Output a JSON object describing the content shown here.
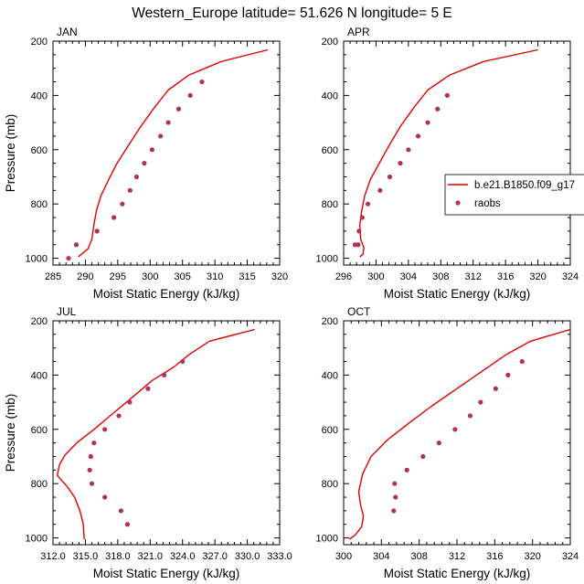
{
  "figure_title": "Western_Europe  latitude= 51.626 N longitude= 5 E",
  "colors": {
    "model": "#e00000",
    "obs": "#b03060",
    "axis": "#000000"
  },
  "legend": {
    "entries": [
      {
        "label": "b.e21.B1850.f09_g17",
        "kind": "line"
      },
      {
        "label": "raobs",
        "kind": "marker"
      }
    ]
  },
  "chart_data": [
    {
      "type": "line",
      "title": "JAN",
      "xlabel": "Moist Static Energy (kJ/kg)",
      "ylabel": "Pressure (mb)",
      "xlim": [
        285,
        320
      ],
      "ylim": [
        1025,
        200
      ],
      "xticks": [
        285,
        290,
        295,
        300,
        305,
        310,
        315,
        320
      ],
      "xtick_labels": [
        "285",
        "290",
        "295",
        "300",
        "305",
        "310",
        "315",
        "320"
      ],
      "yticks": [
        200,
        400,
        600,
        800,
        1000
      ],
      "ytick_labels": [
        "200",
        "400",
        "600",
        "800",
        "1000"
      ],
      "series": [
        {
          "name": "b.e21.B1850.f09_g17",
          "style": "line",
          "x": [
            318.2,
            311.0,
            306.0,
            302.8,
            300.5,
            298.4,
            296.5,
            294.9,
            293.6,
            292.4,
            291.7,
            291.3,
            291.0,
            290.4,
            288.9
          ],
          "y": [
            232,
            275,
            325,
            380,
            450,
            520,
            590,
            650,
            710,
            770,
            825,
            880,
            930,
            965,
            995
          ]
        },
        {
          "name": "raobs",
          "style": "marker",
          "x": [
            308.0,
            306.2,
            304.4,
            302.8,
            301.6,
            300.3,
            299.1,
            297.9,
            296.9,
            295.7,
            294.4,
            291.8,
            288.6,
            287.4
          ],
          "y": [
            350,
            400,
            450,
            500,
            550,
            600,
            650,
            700,
            750,
            800,
            850,
            900,
            950,
            1000
          ]
        }
      ]
    },
    {
      "type": "line",
      "title": "APR",
      "xlabel": "Moist Static Energy (kJ/kg)",
      "ylabel": "",
      "xlim": [
        296,
        324
      ],
      "ylim": [
        1025,
        200
      ],
      "xticks": [
        296,
        300,
        304,
        308,
        312,
        316,
        320,
        324
      ],
      "xtick_labels": [
        "296",
        "300",
        "304",
        "308",
        "312",
        "316",
        "320",
        "324"
      ],
      "yticks": [
        200,
        400,
        600,
        800,
        1000
      ],
      "ytick_labels": [
        "200",
        "400",
        "600",
        "800",
        "1000"
      ],
      "series": [
        {
          "name": "b.e21.B1850.f09_g17",
          "style": "line",
          "x": [
            320.0,
            313.3,
            309.1,
            306.4,
            304.8,
            303.1,
            301.7,
            300.4,
            299.3,
            298.6,
            298.2,
            298.0,
            298.1,
            298.5,
            298.4,
            298.0
          ],
          "y": [
            232,
            275,
            325,
            380,
            440,
            510,
            580,
            650,
            710,
            770,
            830,
            880,
            930,
            960,
            985,
            995
          ]
        },
        {
          "name": "raobs",
          "style": "marker",
          "x": [
            308.8,
            307.6,
            306.4,
            305.2,
            304.0,
            303.0,
            301.7,
            300.5,
            299.0,
            298.3,
            297.9,
            297.8,
            297.4
          ],
          "y": [
            400,
            450,
            500,
            550,
            600,
            650,
            700,
            750,
            800,
            850,
            900,
            950,
            950
          ]
        }
      ]
    },
    {
      "type": "line",
      "title": "JUL",
      "xlabel": "Moist Static Energy (kJ/kg)",
      "ylabel": "Pressure (mb)",
      "xlim": [
        312,
        333
      ],
      "ylim": [
        1025,
        200
      ],
      "xticks": [
        312,
        315,
        318,
        321,
        324,
        327,
        330,
        333
      ],
      "xtick_labels": [
        "312.0",
        "315.0",
        "318.0",
        "321.0",
        "324.0",
        "327.0",
        "330.0",
        "333.0"
      ],
      "yticks": [
        200,
        400,
        600,
        800,
        1000
      ],
      "ytick_labels": [
        "200",
        "400",
        "600",
        "800",
        "1000"
      ],
      "series": [
        {
          "name": "b.e21.B1850.f09_g17",
          "style": "line",
          "x": [
            330.7,
            326.5,
            324.6,
            323.2,
            321.2,
            319.4,
            317.6,
            315.8,
            314.2,
            313.1,
            312.6,
            312.4,
            313.3,
            314.0,
            314.5,
            314.8,
            314.9
          ],
          "y": [
            232,
            275,
            325,
            370,
            420,
            480,
            540,
            600,
            650,
            695,
            730,
            770,
            810,
            850,
            900,
            950,
            1005
          ]
        },
        {
          "name": "raobs",
          "style": "marker",
          "x": [
            324.0,
            322.3,
            320.8,
            319.1,
            318.1,
            316.8,
            315.8,
            315.5,
            315.4,
            315.6,
            316.8,
            318.3,
            318.9
          ],
          "y": [
            350,
            400,
            450,
            500,
            550,
            600,
            650,
            700,
            750,
            800,
            850,
            900,
            950
          ]
        }
      ]
    },
    {
      "type": "line",
      "title": "OCT",
      "xlabel": "Moist Static Energy (kJ/kg)",
      "ylabel": "",
      "xlim": [
        300,
        324
      ],
      "ylim": [
        1025,
        200
      ],
      "xticks": [
        300,
        304,
        308,
        312,
        316,
        320,
        324
      ],
      "xtick_labels": [
        "300",
        "304",
        "308",
        "312",
        "316",
        "320",
        "324"
      ],
      "yticks": [
        200,
        400,
        600,
        800,
        1000
      ],
      "ytick_labels": [
        "200",
        "400",
        "600",
        "800",
        "1000"
      ],
      "series": [
        {
          "name": "b.e21.B1850.f09_g17",
          "style": "line",
          "x": [
            324.0,
            319.8,
            317.2,
            314.7,
            312.0,
            309.3,
            306.8,
            304.6,
            302.9,
            302.0,
            301.6,
            301.8,
            302.1,
            301.9,
            301.2,
            300.6
          ],
          "y": [
            232,
            275,
            325,
            385,
            450,
            515,
            580,
            640,
            700,
            765,
            830,
            880,
            920,
            960,
            990,
            1005
          ]
        },
        {
          "name": "raobs",
          "style": "marker",
          "x": [
            318.9,
            317.4,
            316.1,
            314.5,
            313.4,
            311.8,
            310.1,
            308.4,
            306.7,
            305.4,
            305.5,
            305.3
          ],
          "y": [
            350,
            400,
            450,
            500,
            550,
            600,
            650,
            700,
            750,
            800,
            850,
            900
          ]
        }
      ]
    }
  ]
}
